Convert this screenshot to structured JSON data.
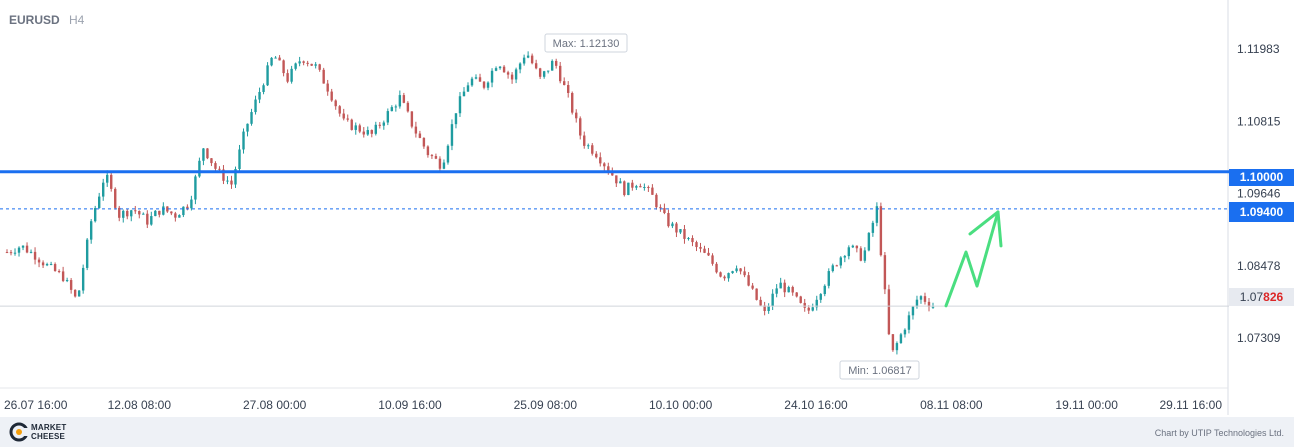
{
  "header": {
    "symbol": "EURUSD",
    "timeframe": "H4"
  },
  "footer": {
    "logo_line1": "MARKET",
    "logo_line2": "CHEESE",
    "credit": "Chart by UTIP Technologies Ltd."
  },
  "colors": {
    "up": "#1f9ca0",
    "down": "#c25757",
    "level": "#1a6ff0",
    "arrow": "#4ade80",
    "axis_text": "#374151"
  },
  "chart_data": {
    "type": "candlestick",
    "symbol": "EURUSD",
    "timeframe": "H4",
    "x_ticks": [
      "26.07 16:00",
      "12.08 08:00",
      "27.08 00:00",
      "10.09 16:00",
      "25.09 08:00",
      "10.10 00:00",
      "24.10 16:00",
      "08.11 08:00",
      "19.11 00:00",
      "29.11 16:00"
    ],
    "y_ticks": [
      1.11983,
      1.10815,
      1.09646,
      1.08478,
      1.07309
    ],
    "ylim": [
      1.065,
      1.1265
    ],
    "price_path": [
      1.087,
      1.088,
      1.0865,
      1.0845,
      1.083,
      1.079,
      1.092,
      1.0997,
      1.093,
      1.094,
      1.092,
      1.094,
      1.093,
      1.095,
      1.104,
      1.1,
      1.098,
      1.107,
      1.113,
      1.119,
      1.115,
      1.1185,
      1.117,
      1.113,
      1.108,
      1.107,
      1.106,
      1.109,
      1.112,
      1.107,
      1.103,
      1.101,
      1.11,
      1.115,
      1.114,
      1.118,
      1.115,
      1.1195,
      1.115,
      1.118,
      1.112,
      1.105,
      1.103,
      1.1,
      1.097,
      1.0985,
      1.096,
      1.092,
      1.09,
      1.088,
      1.086,
      1.083,
      1.085,
      1.081,
      1.077,
      1.082,
      1.08,
      1.077,
      1.081,
      1.085,
      1.088,
      1.086,
      1.094,
      1.07,
      1.075,
      1.08,
      1.0783
    ],
    "max_label": "Max: 1.12130",
    "min_label": "Min: 1.06817",
    "max_value": 1.1213,
    "min_value": 1.06817,
    "levels": [
      {
        "value": 1.1,
        "label": "1.10000",
        "style": "solid"
      },
      {
        "value": 1.094,
        "label": "1.09400",
        "style": "dashed"
      }
    ],
    "current_price": {
      "value": 1.07826,
      "prefix": "1.07",
      "highlight": "826"
    },
    "forecast_arrow": [
      [
        1.0783
      ],
      [
        1.087
      ],
      [
        1.0815
      ],
      [
        1.0935
      ]
    ]
  }
}
